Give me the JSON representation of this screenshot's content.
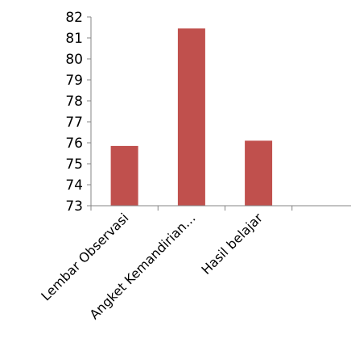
{
  "chart_data": {
    "type": "bar",
    "title": "",
    "xlabel": "",
    "ylabel": "",
    "categories": [
      "Lembar Observasi",
      "Angket Kemandirian…",
      "Hasil belajar",
      ""
    ],
    "values": [
      75.85,
      81.45,
      76.1,
      null
    ],
    "ylim": [
      73,
      82
    ],
    "yticks": [
      73,
      74,
      75,
      76,
      77,
      78,
      79,
      80,
      81,
      82
    ],
    "grid": false,
    "legend": "none",
    "bar_color": "#C0504D",
    "axis_color": "#868686"
  }
}
